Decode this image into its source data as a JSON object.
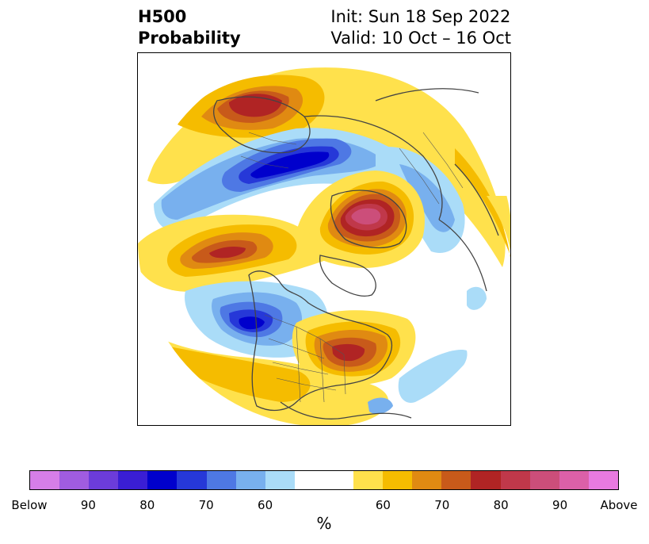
{
  "header": {
    "title_line1": "H500",
    "title_line2": "Probability",
    "init_line": "Init: Sun 18 Sep 2022",
    "valid_line": "Valid: 10 Oct – 16 Oct"
  },
  "legend": {
    "unit": "%",
    "tick_labels": [
      "Below",
      "90",
      "80",
      "70",
      "60",
      "60",
      "70",
      "80",
      "90",
      "Above"
    ],
    "below_colors": [
      "#d67ee8",
      "#a05ce0",
      "#6c3cda",
      "#3a1ed4",
      "#0000cc",
      "#2638d8",
      "#4e78e4",
      "#78b0ee",
      "#aadcf8"
    ],
    "neutral_color": "#ffffff",
    "above_colors": [
      "#ffe14c",
      "#f5bc00",
      "#e08a12",
      "#c85a1a",
      "#b02424",
      "#c0384a",
      "#cc4e7a",
      "#dc60a8",
      "#e87ae0"
    ]
  },
  "map": {
    "projection": "north-polar-stereographic",
    "region_outlines": [
      "North America",
      "Greenland",
      "Arctic",
      "Europe",
      "Asia"
    ]
  }
}
